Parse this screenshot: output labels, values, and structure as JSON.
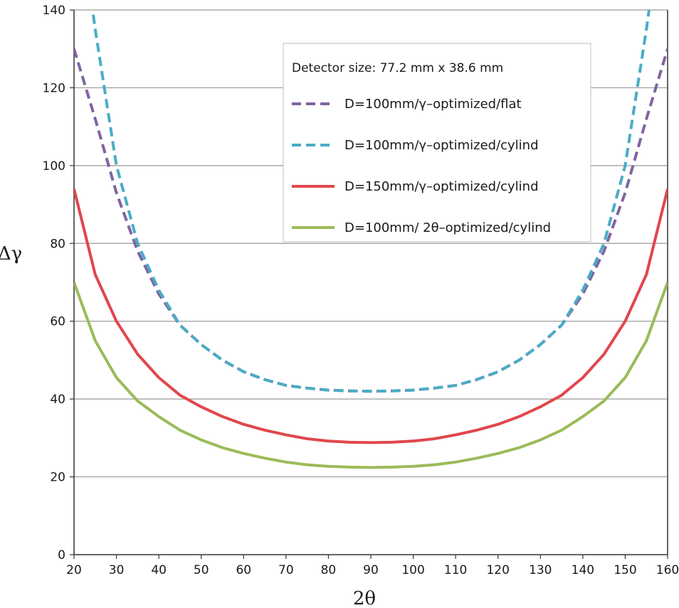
{
  "chart_data": {
    "type": "line",
    "xlabel": "2θ",
    "ylabel": "Δγ",
    "xlim": [
      20,
      160
    ],
    "ylim": [
      0,
      140
    ],
    "x_ticks": [
      20,
      30,
      40,
      50,
      60,
      70,
      80,
      90,
      100,
      110,
      120,
      130,
      140,
      150,
      160
    ],
    "y_ticks": [
      0,
      20,
      40,
      60,
      80,
      100,
      120,
      140
    ],
    "grid": "horizontal",
    "legend_title": "Detector size: 77.2 mm x 38.6 mm",
    "legend_position": "top-right",
    "x": [
      20,
      25,
      30,
      35,
      40,
      45,
      50,
      55,
      60,
      65,
      70,
      75,
      80,
      85,
      90,
      95,
      100,
      105,
      110,
      115,
      120,
      125,
      130,
      135,
      140,
      145,
      150,
      155,
      160
    ],
    "series": [
      {
        "name": "D=100mm/γ–optimized/flat",
        "color": "#8064a2",
        "dash": "dashed",
        "values": [
          130,
          112,
          93,
          78,
          67,
          59,
          54,
          50,
          47,
          45,
          43.5,
          42.8,
          42.3,
          42.1,
          42,
          42.1,
          42.3,
          42.8,
          43.5,
          45,
          47,
          50,
          54,
          59,
          67,
          78,
          93,
          112,
          130
        ]
      },
      {
        "name": "D=100mm/γ–optimized/cylind",
        "color": "#4bacc6",
        "dash": "dashed",
        "values": [
          175,
          135,
          100,
          80,
          68,
          59,
          54,
          50,
          47,
          45,
          43.5,
          42.8,
          42.3,
          42.1,
          42,
          42.1,
          42.3,
          42.8,
          43.5,
          45,
          47,
          50,
          54,
          59,
          68,
          80,
          100,
          135,
          175
        ]
      },
      {
        "name": "D=150mm/γ–optimized/cylind",
        "color": "#e0474c",
        "dash": "solid",
        "values": [
          94,
          72,
          60,
          51.5,
          45.5,
          41,
          38,
          35.5,
          33.5,
          32,
          30.8,
          29.8,
          29.2,
          28.9,
          28.8,
          28.9,
          29.2,
          29.8,
          30.8,
          32,
          33.5,
          35.5,
          38,
          41,
          45.5,
          51.5,
          60,
          72,
          94
        ]
      },
      {
        "name": "D=100mm/ 2θ–optimized/cylind",
        "color": "#9bbb59",
        "dash": "solid",
        "values": [
          70,
          55,
          45.5,
          39.5,
          35.5,
          32,
          29.5,
          27.5,
          26,
          24.8,
          23.8,
          23.1,
          22.7,
          22.5,
          22.4,
          22.5,
          22.7,
          23.1,
          23.8,
          24.8,
          26,
          27.5,
          29.5,
          32,
          35.5,
          39.5,
          45.5,
          55,
          70
        ]
      }
    ]
  }
}
